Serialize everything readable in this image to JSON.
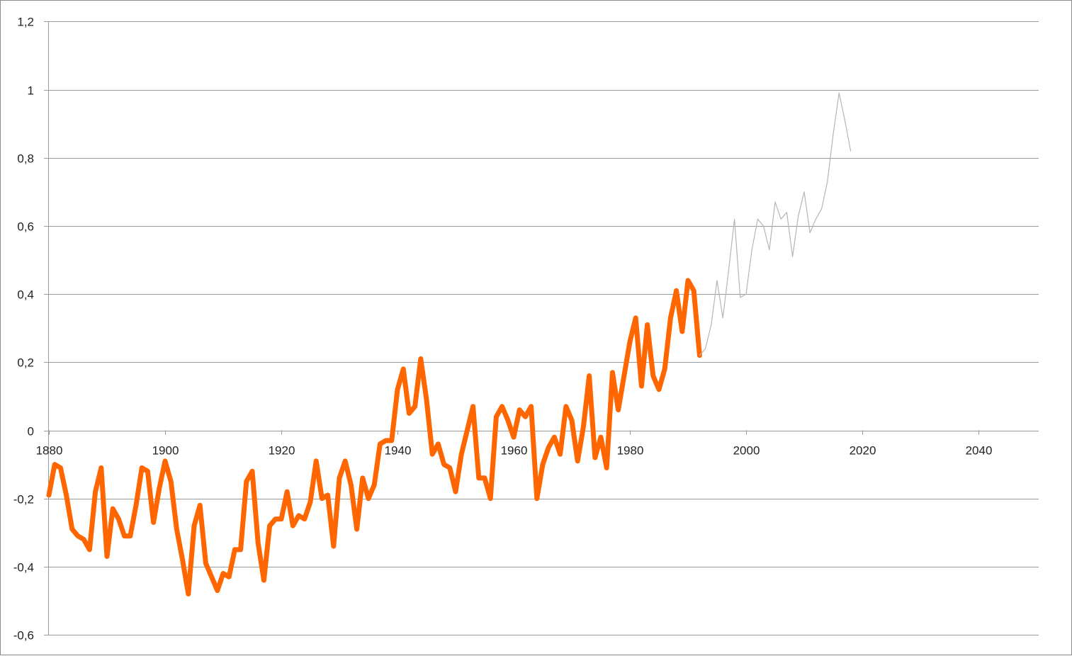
{
  "chart_data": {
    "type": "line",
    "title": "",
    "xlabel": "",
    "ylabel": "",
    "xlim": [
      1880,
      2050
    ],
    "ylim": [
      -0.6,
      1.2
    ],
    "x_ticks": [
      1880,
      1900,
      1920,
      1940,
      1960,
      1980,
      2000,
      2020,
      2040
    ],
    "x_tick_labels": [
      "1880",
      "1900",
      "1920",
      "1940",
      "1960",
      "1980",
      "2000",
      "2020",
      "2040"
    ],
    "y_ticks": [
      -0.6,
      -0.4,
      -0.2,
      0,
      0.2,
      0.4,
      0.6,
      0.8,
      1,
      1.2
    ],
    "y_tick_labels": [
      "-0,6",
      "-0,4",
      "-0,2",
      "0",
      "0,2",
      "0,4",
      "0,6",
      "0,8",
      "1",
      "1,2"
    ],
    "grid": true,
    "legend": "none",
    "series": [
      {
        "color": "#ff6600",
        "x": [
          1880,
          1881,
          1882,
          1883,
          1884,
          1885,
          1886,
          1887,
          1888,
          1889,
          1890,
          1891,
          1892,
          1893,
          1894,
          1895,
          1896,
          1897,
          1898,
          1899,
          1900,
          1901,
          1902,
          1903,
          1904,
          1905,
          1906,
          1907,
          1908,
          1909,
          1910,
          1911,
          1912,
          1913,
          1914,
          1915,
          1916,
          1917,
          1918,
          1919,
          1920,
          1921,
          1922,
          1923,
          1924,
          1925,
          1926,
          1927,
          1928,
          1929,
          1930,
          1931,
          1932,
          1933,
          1934,
          1935,
          1936,
          1937,
          1938,
          1939,
          1940,
          1941,
          1942,
          1943,
          1944,
          1945,
          1946,
          1947,
          1948,
          1949,
          1950,
          1951,
          1952,
          1953,
          1954,
          1955,
          1956,
          1957,
          1958,
          1959,
          1960,
          1961,
          1962,
          1963,
          1964,
          1965,
          1966,
          1967,
          1968,
          1969,
          1970,
          1971,
          1972,
          1973,
          1974,
          1975,
          1976,
          1977,
          1978,
          1979,
          1980,
          1981,
          1982,
          1983,
          1984,
          1985,
          1986,
          1987,
          1988,
          1989,
          1990,
          1991,
          1992
        ],
        "y": [
          -0.19,
          -0.1,
          -0.11,
          -0.19,
          -0.29,
          -0.31,
          -0.32,
          -0.35,
          -0.18,
          -0.11,
          -0.37,
          -0.23,
          -0.26,
          -0.31,
          -0.31,
          -0.22,
          -0.11,
          -0.12,
          -0.27,
          -0.17,
          -0.09,
          -0.15,
          -0.29,
          -0.38,
          -0.48,
          -0.28,
          -0.22,
          -0.39,
          -0.43,
          -0.47,
          -0.42,
          -0.43,
          -0.35,
          -0.35,
          -0.15,
          -0.12,
          -0.33,
          -0.44,
          -0.28,
          -0.26,
          -0.26,
          -0.18,
          -0.28,
          -0.25,
          -0.26,
          -0.21,
          -0.09,
          -0.2,
          -0.19,
          -0.34,
          -0.14,
          -0.09,
          -0.16,
          -0.29,
          -0.14,
          -0.2,
          -0.16,
          -0.04,
          -0.03,
          -0.03,
          0.12,
          0.18,
          0.05,
          0.07,
          0.21,
          0.09,
          -0.07,
          -0.04,
          -0.1,
          -0.11,
          -0.18,
          -0.07,
          0.0,
          0.07,
          -0.14,
          -0.14,
          -0.2,
          0.04,
          0.07,
          0.03,
          -0.02,
          0.06,
          0.04,
          0.07,
          -0.2,
          -0.1,
          -0.05,
          -0.02,
          -0.07,
          0.07,
          0.03,
          -0.09,
          0.01,
          0.16,
          -0.08,
          -0.02,
          -0.11,
          0.17,
          0.06,
          0.16,
          0.26,
          0.33,
          0.13,
          0.31,
          0.16,
          0.12,
          0.18,
          0.33,
          0.41,
          0.29,
          0.44,
          0.41,
          0.22
        ]
      },
      {
        "color": "#b5b5b5",
        "x": [
          1992,
          1993,
          1994,
          1995,
          1996,
          1997,
          1998,
          1999,
          2000,
          2001,
          2002,
          2003,
          2004,
          2005,
          2006,
          2007,
          2008,
          2009,
          2010,
          2011,
          2012,
          2013,
          2014,
          2015,
          2016,
          2017,
          2018
        ],
        "y": [
          0.22,
          0.24,
          0.31,
          0.44,
          0.33,
          0.47,
          0.62,
          0.39,
          0.4,
          0.53,
          0.62,
          0.6,
          0.53,
          0.67,
          0.62,
          0.64,
          0.51,
          0.63,
          0.7,
          0.58,
          0.62,
          0.65,
          0.73,
          0.87,
          0.99,
          0.91,
          0.82
        ]
      }
    ]
  }
}
